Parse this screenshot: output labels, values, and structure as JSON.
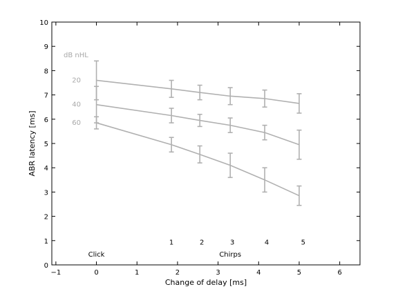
{
  "chart_data": {
    "type": "line",
    "xlabel": "Change of delay [ms]",
    "ylabel": "ABR latency [ms]",
    "xlim": [
      -1.1,
      6.5
    ],
    "ylim": [
      0,
      10
    ],
    "xticks": [
      -1,
      0,
      1,
      2,
      3,
      4,
      5,
      6
    ],
    "yticks": [
      0,
      1,
      2,
      3,
      4,
      5,
      6,
      7,
      8,
      9,
      10
    ],
    "grid": false,
    "legend_title": "dB nHL",
    "line_color": "#b0b0b0",
    "series": [
      {
        "name": "20",
        "x": [
          0,
          1.85,
          2.55,
          3.3,
          4.15,
          5.0
        ],
        "y": [
          7.6,
          7.25,
          7.1,
          6.95,
          6.85,
          6.65
        ],
        "err": [
          0.8,
          0.35,
          0.3,
          0.35,
          0.35,
          0.4
        ]
      },
      {
        "name": "40",
        "x": [
          0,
          1.85,
          2.55,
          3.3,
          4.15,
          5.0
        ],
        "y": [
          6.6,
          6.15,
          5.95,
          5.75,
          5.45,
          4.95
        ],
        "err": [
          0.75,
          0.3,
          0.25,
          0.3,
          0.3,
          0.6
        ]
      },
      {
        "name": "60",
        "x": [
          0,
          1.85,
          2.55,
          3.3,
          4.15,
          5.0
        ],
        "y": [
          5.85,
          4.95,
          4.55,
          4.1,
          3.5,
          2.85
        ],
        "err": [
          0.25,
          0.3,
          0.35,
          0.5,
          0.5,
          0.4
        ]
      }
    ],
    "annotations": [
      {
        "text": "Click",
        "x": 0.0,
        "y": 0.45
      },
      {
        "text": "Chirps",
        "x": 3.3,
        "y": 0.45
      },
      {
        "text": "1",
        "x": 1.85,
        "y": 0.95
      },
      {
        "text": "2",
        "x": 2.6,
        "y": 0.95
      },
      {
        "text": "3",
        "x": 3.35,
        "y": 0.95
      },
      {
        "text": "4",
        "x": 4.2,
        "y": 0.95
      },
      {
        "text": "5",
        "x": 5.1,
        "y": 0.95
      }
    ]
  }
}
